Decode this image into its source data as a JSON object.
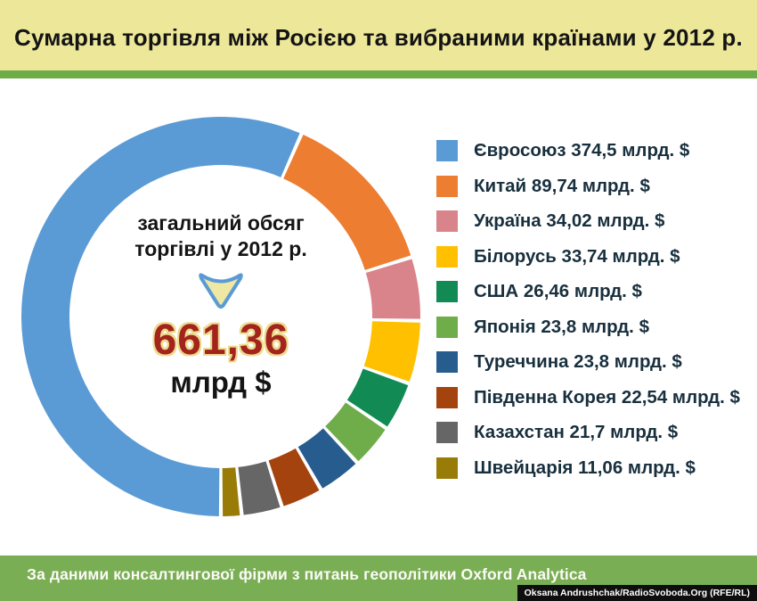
{
  "header": {
    "title": "Сумарна торгівля між Росією та вибраними країнами у 2012 р."
  },
  "center": {
    "label_line1": "загальний обсяг",
    "label_line2": "торгівлі у 2012 р.",
    "total_value": "661,36",
    "total_unit": "млрд $"
  },
  "footer": {
    "source": "За даними консалтингової фірми з питань геополітики Oxford Analytica",
    "credit": "Oksana Andrushchak/RadioSvoboda.Org (RFE/RL)"
  },
  "colors": {
    "band_yellow": "#EDE79A",
    "rule_green": "#6EAC47",
    "footer_green": "#7AAE54",
    "total_red": "#A3241C",
    "total_outline": "#ECDB8E",
    "legend_text": "#182F3D",
    "arrow_fill": "#EEE8A4",
    "arrow_stroke": "#5B9BD5",
    "credit_bg": "#0E0E0E"
  },
  "chart_data": {
    "type": "pie",
    "subtype": "donut",
    "title": "Сумарна торгівля між Росією та вибраними країнами у 2012 р.",
    "units": "млрд $",
    "total": 661.36,
    "total_label": "661,36 млрд $",
    "start_angle_deg": 180,
    "direction": "clockwise",
    "legend_position": "right",
    "inner_radius_px": 170,
    "outer_radius_px": 224,
    "segments": [
      {
        "label": "Євросоюз",
        "value": 374.5,
        "display": "Євросоюз 374,5 млрд. $",
        "color": "#5B9BD5"
      },
      {
        "label": "Китай",
        "value": 89.74,
        "display": "Китай 89,74 млрд. $",
        "color": "#ED7D31"
      },
      {
        "label": "Україна",
        "value": 34.02,
        "display": "Україна 34,02 млрд. $",
        "color": "#D9848A"
      },
      {
        "label": "Білорусь",
        "value": 33.74,
        "display": "Білорусь 33,74 млрд. $",
        "color": "#FFC000"
      },
      {
        "label": "США",
        "value": 26.46,
        "display": "США 26,46 млрд. $",
        "color": "#118A54"
      },
      {
        "label": "Японія",
        "value": 23.8,
        "display": "Японія 23,8 млрд. $",
        "color": "#6FAD4B"
      },
      {
        "label": "Туреччина",
        "value": 23.8,
        "display": "Туреччина 23,8 млрд. $",
        "color": "#275D8E"
      },
      {
        "label": "Південна Корея",
        "value": 22.54,
        "display": "Південна Корея 22,54 млрд. $",
        "color": "#A5430F"
      },
      {
        "label": "Казахстан",
        "value": 21.7,
        "display": "Казахстан 21,7 млрд. $",
        "color": "#666666"
      },
      {
        "label": "Швейцарія",
        "value": 11.06,
        "display": "Швейцарія 11,06 млрд. $",
        "color": "#997B08"
      }
    ]
  }
}
